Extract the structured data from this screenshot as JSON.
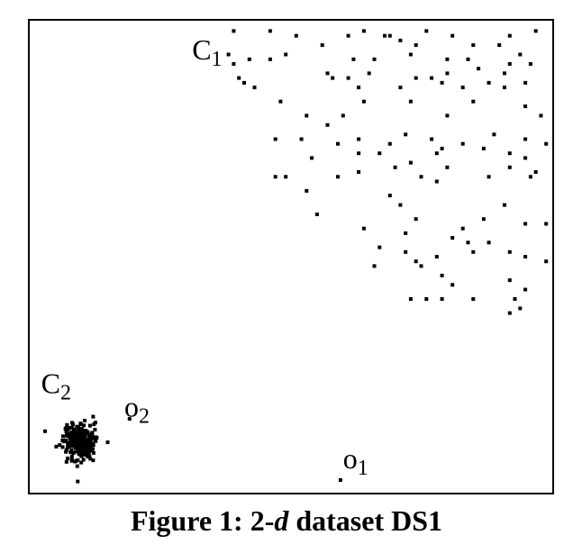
{
  "chart_data": {
    "type": "scatter",
    "xlim": [
      0,
      100
    ],
    "ylim": [
      0,
      100
    ],
    "grid": false,
    "axes_ticks": false,
    "point_color": "#000000",
    "labels": [
      {
        "name": "C",
        "sub": "1",
        "x": 31,
        "y": 92
      },
      {
        "name": "C",
        "sub": "2",
        "x": 2,
        "y": 21
      },
      {
        "name": "o",
        "sub": "2",
        "x": 18,
        "y": 16
      },
      {
        "name": "o",
        "sub": "1",
        "x": 60,
        "y": 5
      }
    ],
    "series": [
      {
        "points": [
          [
            39,
            98
          ],
          [
            46,
            98
          ],
          [
            51,
            97
          ],
          [
            61,
            97
          ],
          [
            64,
            98
          ],
          [
            68,
            97
          ],
          [
            69,
            97
          ],
          [
            76,
            98
          ],
          [
            81,
            97
          ],
          [
            92,
            97
          ],
          [
            97,
            98
          ],
          [
            71,
            96
          ],
          [
            74,
            95
          ],
          [
            56,
            95
          ],
          [
            85,
            95
          ],
          [
            90,
            95
          ],
          [
            94,
            93
          ],
          [
            38,
            93
          ],
          [
            42,
            92
          ],
          [
            46,
            92
          ],
          [
            49,
            93
          ],
          [
            62,
            92
          ],
          [
            66,
            92
          ],
          [
            73,
            93
          ],
          [
            80,
            92
          ],
          [
            84,
            92
          ],
          [
            92,
            91
          ],
          [
            39,
            91
          ],
          [
            57,
            89
          ],
          [
            58,
            88
          ],
          [
            61,
            88
          ],
          [
            65,
            89
          ],
          [
            74,
            88
          ],
          [
            80,
            89
          ],
          [
            86,
            90
          ],
          [
            91,
            89
          ],
          [
            96,
            91
          ],
          [
            40,
            88
          ],
          [
            41,
            87
          ],
          [
            43,
            86
          ],
          [
            63,
            86
          ],
          [
            71,
            86
          ],
          [
            77,
            88
          ],
          [
            79,
            87
          ],
          [
            83,
            86
          ],
          [
            88,
            87
          ],
          [
            91,
            86
          ],
          [
            95,
            87
          ],
          [
            48,
            83
          ],
          [
            53,
            80
          ],
          [
            57,
            78
          ],
          [
            60,
            80
          ],
          [
            64,
            83
          ],
          [
            73,
            83
          ],
          [
            80,
            80
          ],
          [
            85,
            83
          ],
          [
            95,
            82
          ],
          [
            98,
            80
          ],
          [
            47,
            75
          ],
          [
            52,
            75
          ],
          [
            59,
            74
          ],
          [
            63,
            75
          ],
          [
            67,
            72
          ],
          [
            72,
            76
          ],
          [
            77,
            75
          ],
          [
            83,
            74
          ],
          [
            89,
            76
          ],
          [
            95,
            75
          ],
          [
            54,
            71
          ],
          [
            63,
            72
          ],
          [
            69,
            74
          ],
          [
            73,
            70
          ],
          [
            79,
            73
          ],
          [
            87,
            73
          ],
          [
            92,
            72
          ],
          [
            95,
            71
          ],
          [
            99,
            74
          ],
          [
            78,
            72
          ],
          [
            47,
            67
          ],
          [
            49,
            67
          ],
          [
            53,
            64
          ],
          [
            59,
            67
          ],
          [
            63,
            68
          ],
          [
            70,
            69
          ],
          [
            75,
            67
          ],
          [
            78,
            66
          ],
          [
            80,
            69
          ],
          [
            88,
            67
          ],
          [
            92,
            69
          ],
          [
            96,
            67
          ],
          [
            97,
            68
          ],
          [
            55,
            59
          ],
          [
            69,
            63
          ],
          [
            71,
            61
          ],
          [
            74,
            58
          ],
          [
            87,
            58
          ],
          [
            91,
            61
          ],
          [
            95,
            57
          ],
          [
            99,
            57
          ],
          [
            64,
            56
          ],
          [
            72,
            55
          ],
          [
            81,
            54
          ],
          [
            83,
            56
          ],
          [
            88,
            53
          ],
          [
            84,
            53
          ],
          [
            67,
            52
          ],
          [
            72,
            51
          ],
          [
            74,
            49
          ],
          [
            78,
            50
          ],
          [
            85,
            51
          ],
          [
            92,
            51
          ],
          [
            95,
            50
          ],
          [
            99,
            49
          ],
          [
            66,
            48
          ],
          [
            75,
            48
          ],
          [
            79,
            46
          ],
          [
            81,
            44
          ],
          [
            92,
            45
          ],
          [
            73,
            41
          ],
          [
            76,
            41
          ],
          [
            79,
            41
          ],
          [
            85,
            41
          ],
          [
            93,
            41
          ],
          [
            95,
            43
          ],
          [
            92,
            38
          ],
          [
            94,
            39
          ]
        ]
      },
      {
        "center": [
          9.5,
          10.5
        ],
        "spread": [
          1.6,
          1.9
        ],
        "count": 240
      },
      {
        "points": [
          [
            19,
            15.5
          ],
          [
            59.5,
            2.5
          ]
        ]
      }
    ]
  },
  "caption": {
    "prefix": "Figure 1: 2-",
    "italic": "d",
    "suffix": " dataset DS1"
  }
}
